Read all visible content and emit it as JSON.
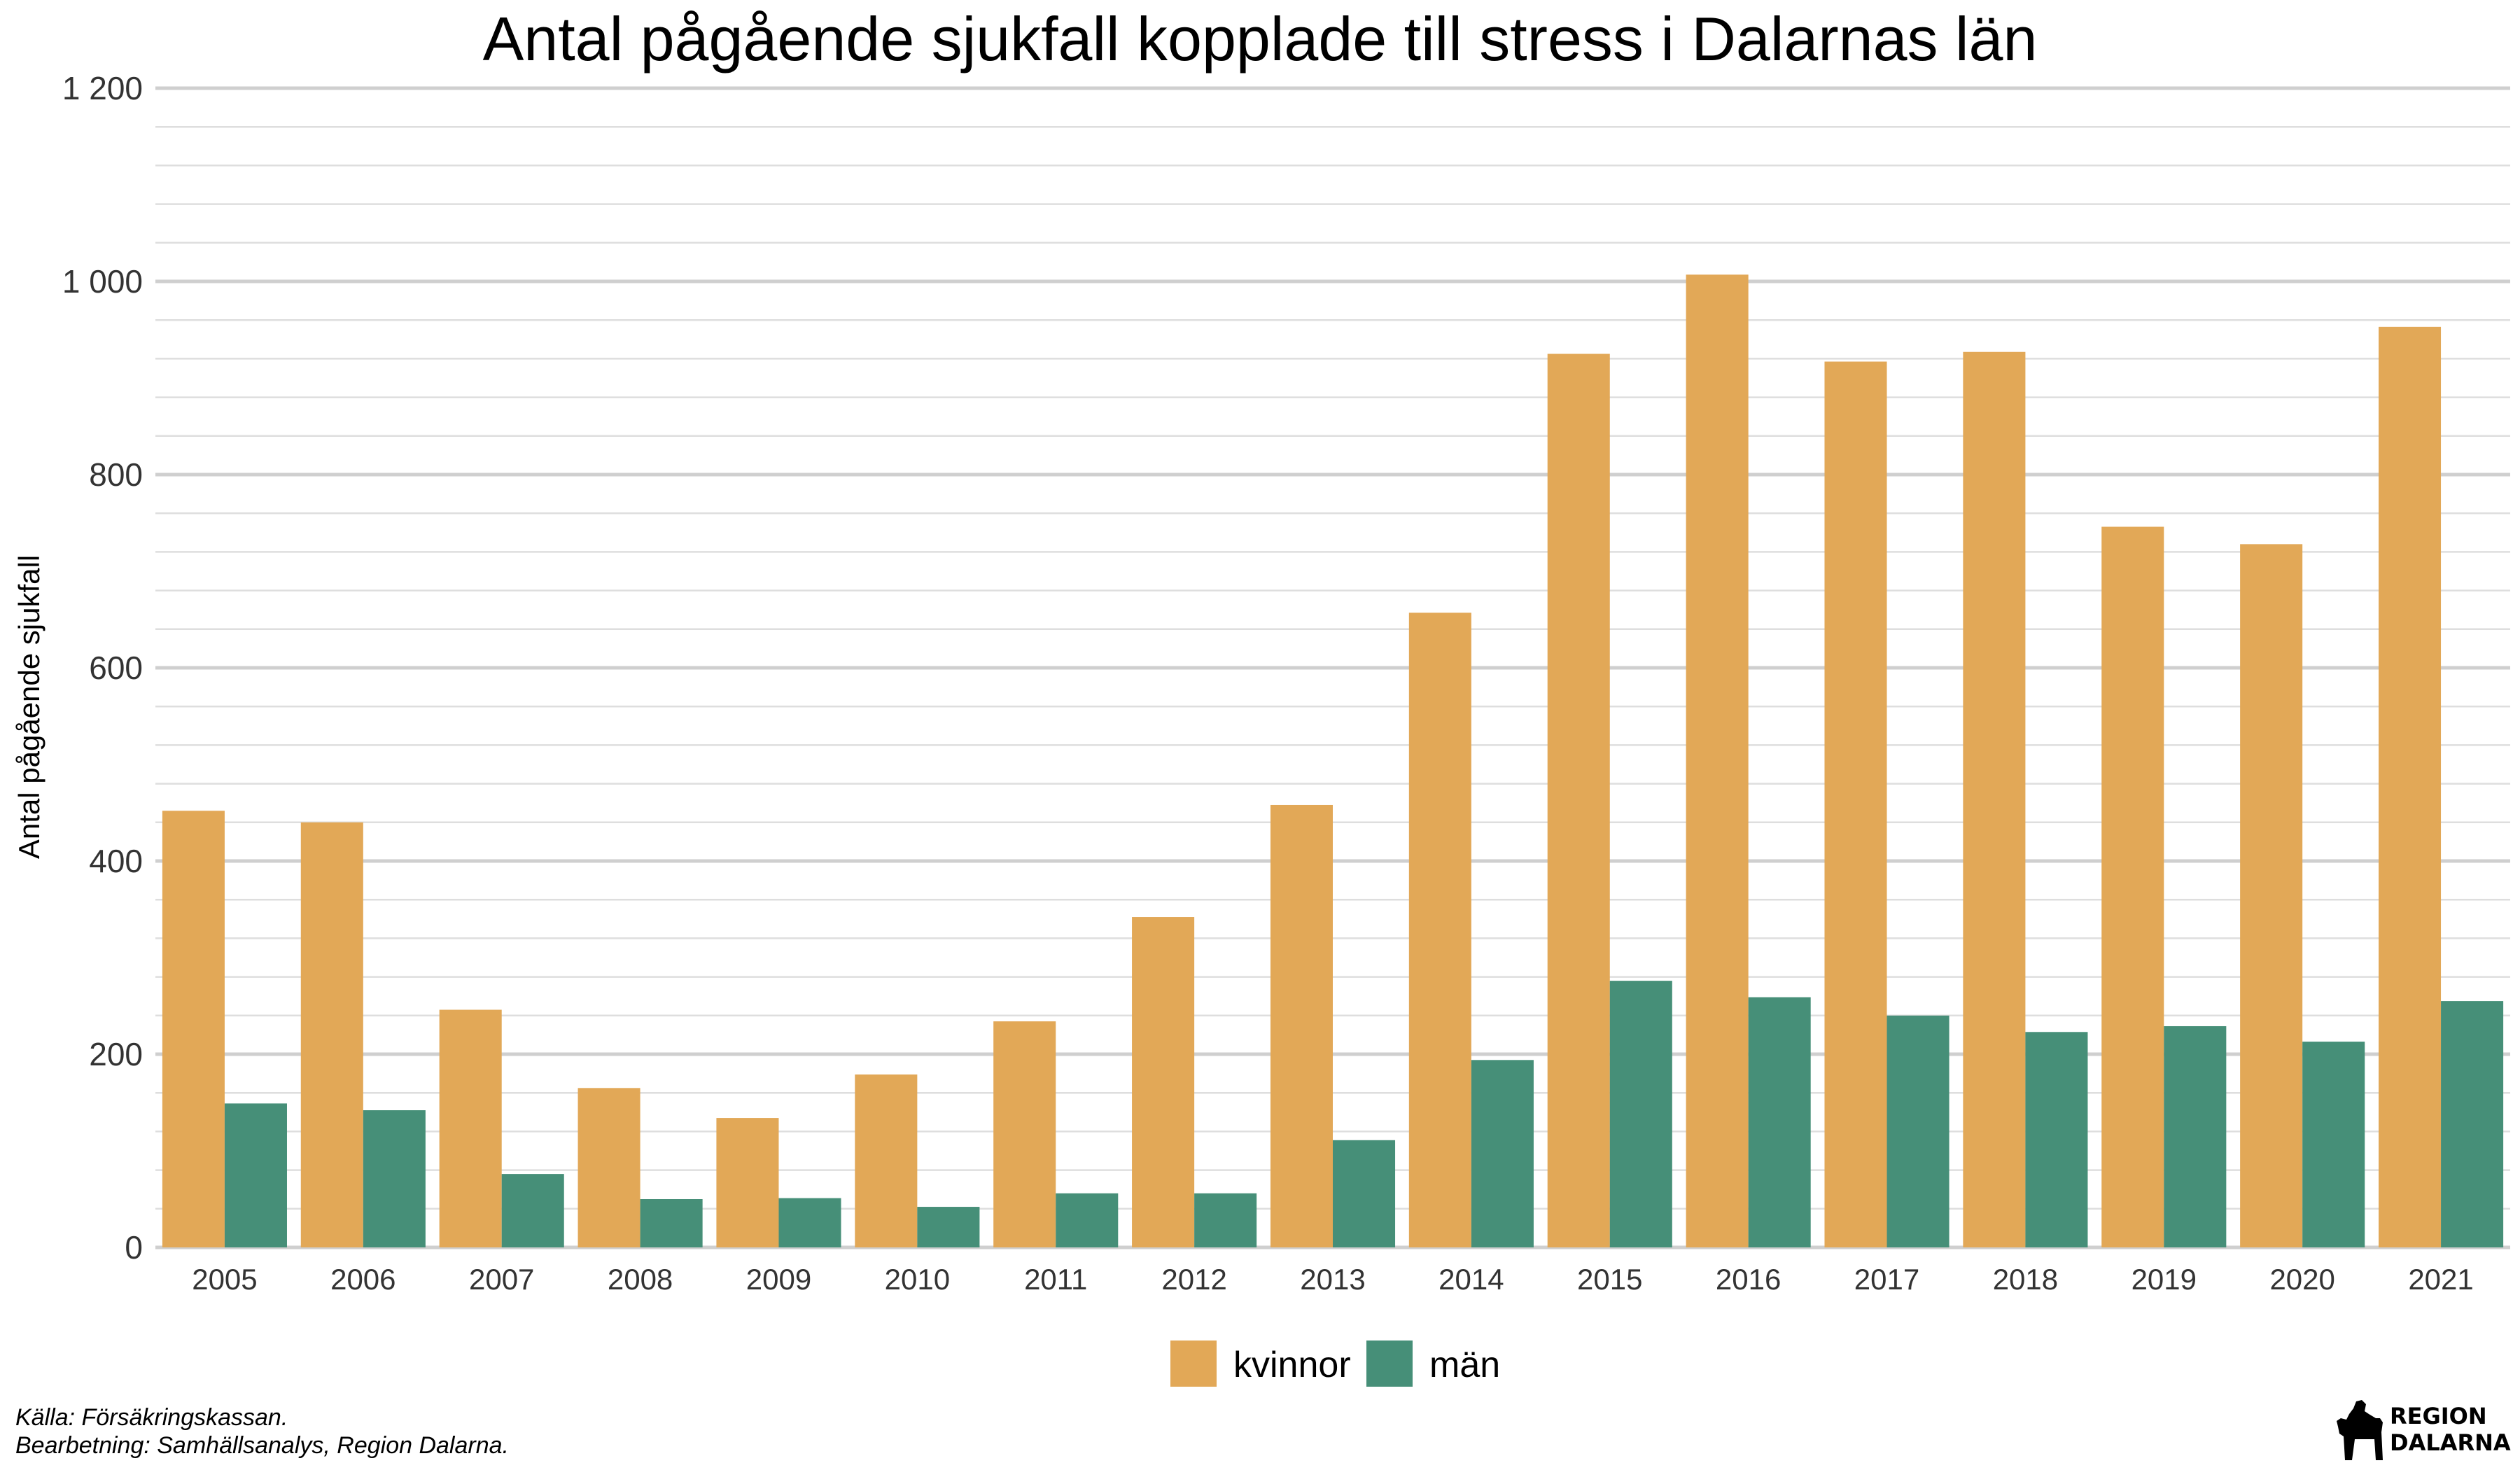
{
  "colors": {
    "kvinnor": "#E2A857",
    "man": "#468F78",
    "grid_major": "#CFCFCF",
    "grid_minor": "#DEDEDE"
  },
  "chart_data": {
    "type": "bar",
    "title": "Antal pågående sjukfall kopplade till stress i Dalarnas län",
    "xlabel": "",
    "ylabel": "Antal pågående sjukfall",
    "ylim": [
      0,
      1200
    ],
    "yticks": [
      0,
      200,
      400,
      600,
      800,
      1000,
      1200
    ],
    "ytick_labels": [
      "0",
      "200",
      "400",
      "600",
      "800",
      "1 000",
      "1 200"
    ],
    "grid": true,
    "legend_position": "bottom",
    "categories": [
      "2005",
      "2006",
      "2007",
      "2008",
      "2009",
      "2010",
      "2011",
      "2012",
      "2013",
      "2014",
      "2015",
      "2016",
      "2017",
      "2018",
      "2019",
      "2020",
      "2021"
    ],
    "series": [
      {
        "name": "kvinnor",
        "color": "#E2A857",
        "values": [
          452,
          440,
          246,
          165,
          134,
          179,
          234,
          342,
          458,
          657,
          925,
          1007,
          917,
          927,
          746,
          728,
          953
        ]
      },
      {
        "name": "män",
        "color": "#468F78",
        "values": [
          149,
          142,
          76,
          50,
          51,
          42,
          56,
          56,
          111,
          194,
          276,
          259,
          240,
          223,
          229,
          213,
          255
        ]
      }
    ]
  },
  "footer": {
    "source": "Källa: Försäkringskassan.",
    "processing": "Bearbetning: Samhällsanalys, Region Dalarna."
  },
  "logo": {
    "line1": "REGION",
    "line2": "DALARNA"
  }
}
